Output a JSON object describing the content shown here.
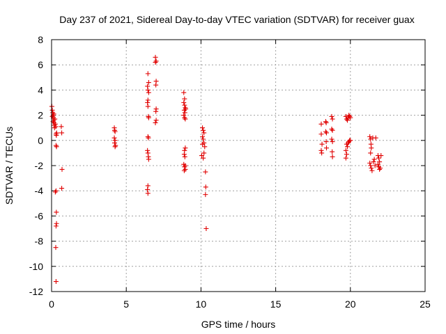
{
  "chart_data": {
    "type": "scatter",
    "title": "Day 237 of 2021, Sidereal Day-to-day VTEC variation (SDTVAR) for receiver guax",
    "xlabel": "GPS time / hours",
    "ylabel": "SDTVAR / TECUs",
    "xlim": [
      0,
      25
    ],
    "ylim": [
      -12,
      8
    ],
    "xticks": [
      0,
      5,
      10,
      15,
      20,
      25
    ],
    "yticks": [
      8,
      6,
      4,
      2,
      0,
      -2,
      -4,
      -6,
      -8,
      -10,
      -12
    ],
    "grid": true,
    "marker": "plus",
    "color": "#e00000",
    "series": [
      {
        "name": "SDTVAR",
        "points": [
          [
            0.02,
            2.7
          ],
          [
            0.05,
            2.4
          ],
          [
            0.08,
            2.2
          ],
          [
            0.1,
            2.0
          ],
          [
            0.12,
            1.8
          ],
          [
            0.14,
            1.6
          ],
          [
            0.16,
            1.4
          ],
          [
            0.18,
            1.2
          ],
          [
            0.2,
            1.0
          ],
          [
            0.05,
            1.9
          ],
          [
            0.1,
            1.5
          ],
          [
            0.15,
            2.1
          ],
          [
            0.22,
            1.7
          ],
          [
            0.25,
            1.3
          ],
          [
            0.28,
            1.1
          ],
          [
            0.3,
            0.5
          ],
          [
            0.32,
            0.4
          ],
          [
            0.34,
            0.6
          ],
          [
            0.3,
            -0.4
          ],
          [
            0.33,
            -0.5
          ],
          [
            0.25,
            -4.1
          ],
          [
            0.3,
            -4.0
          ],
          [
            0.32,
            -5.7
          ],
          [
            0.3,
            -6.8
          ],
          [
            0.33,
            -6.6
          ],
          [
            0.28,
            -8.5
          ],
          [
            0.3,
            -11.2
          ],
          [
            0.65,
            1.1
          ],
          [
            0.68,
            0.6
          ],
          [
            0.7,
            -2.3
          ],
          [
            0.68,
            -3.8
          ],
          [
            4.2,
            1.0
          ],
          [
            4.22,
            0.8
          ],
          [
            4.25,
            0.7
          ],
          [
            4.2,
            0.2
          ],
          [
            4.25,
            0.0
          ],
          [
            4.22,
            -0.2
          ],
          [
            4.28,
            -0.4
          ],
          [
            4.25,
            -0.5
          ],
          [
            6.45,
            5.3
          ],
          [
            6.5,
            4.6
          ],
          [
            6.42,
            4.3
          ],
          [
            6.45,
            4.0
          ],
          [
            6.5,
            3.8
          ],
          [
            6.45,
            3.2
          ],
          [
            6.42,
            3.0
          ],
          [
            6.45,
            2.7
          ],
          [
            6.48,
            1.9
          ],
          [
            6.5,
            1.8
          ],
          [
            6.45,
            0.3
          ],
          [
            6.48,
            0.2
          ],
          [
            6.42,
            -0.8
          ],
          [
            6.45,
            -1.0
          ],
          [
            6.48,
            -1.3
          ],
          [
            6.5,
            -1.5
          ],
          [
            6.45,
            -3.6
          ],
          [
            6.42,
            -3.9
          ],
          [
            6.45,
            -4.2
          ],
          [
            6.95,
            6.6
          ],
          [
            7.0,
            6.3
          ],
          [
            6.95,
            6.2
          ],
          [
            7.0,
            4.7
          ],
          [
            6.98,
            4.4
          ],
          [
            7.0,
            2.5
          ],
          [
            6.98,
            2.3
          ],
          [
            7.0,
            1.6
          ],
          [
            6.95,
            1.4
          ],
          [
            8.85,
            3.8
          ],
          [
            8.9,
            3.3
          ],
          [
            8.85,
            3.0
          ],
          [
            8.9,
            2.8
          ],
          [
            8.95,
            2.6
          ],
          [
            8.88,
            2.4
          ],
          [
            8.92,
            2.2
          ],
          [
            8.85,
            2.0
          ],
          [
            8.9,
            1.8
          ],
          [
            8.95,
            1.7
          ],
          [
            8.98,
            2.5
          ],
          [
            8.95,
            -0.6
          ],
          [
            8.9,
            -0.8
          ],
          [
            8.88,
            -1.1
          ],
          [
            8.92,
            -1.3
          ],
          [
            8.85,
            -1.9
          ],
          [
            8.9,
            -2.1
          ],
          [
            8.95,
            -2.3
          ],
          [
            8.88,
            -2.4
          ],
          [
            8.95,
            -2.0
          ],
          [
            10.1,
            1.0
          ],
          [
            10.15,
            0.8
          ],
          [
            10.2,
            0.6
          ],
          [
            10.1,
            0.3
          ],
          [
            10.15,
            0.1
          ],
          [
            10.2,
            -0.2
          ],
          [
            10.25,
            -0.5
          ],
          [
            10.1,
            -0.3
          ],
          [
            10.05,
            -1.2
          ],
          [
            10.15,
            -1.4
          ],
          [
            10.2,
            -1.0
          ],
          [
            10.3,
            -2.5
          ],
          [
            10.32,
            -3.7
          ],
          [
            10.3,
            -4.3
          ],
          [
            10.35,
            -7.0
          ],
          [
            18.05,
            1.3
          ],
          [
            18.05,
            0.5
          ],
          [
            18.1,
            -0.3
          ],
          [
            18.05,
            -0.8
          ],
          [
            18.08,
            -1.0
          ],
          [
            18.35,
            1.5
          ],
          [
            18.38,
            1.4
          ],
          [
            18.35,
            0.7
          ],
          [
            18.4,
            0.6
          ],
          [
            18.38,
            -0.1
          ],
          [
            18.4,
            -0.6
          ],
          [
            18.75,
            1.9
          ],
          [
            18.8,
            1.7
          ],
          [
            18.75,
            0.9
          ],
          [
            18.8,
            0.8
          ],
          [
            18.75,
            0.1
          ],
          [
            18.8,
            -0.1
          ],
          [
            18.78,
            -0.9
          ],
          [
            18.8,
            -1.3
          ],
          [
            19.7,
            1.9
          ],
          [
            19.75,
            1.7
          ],
          [
            19.8,
            1.6
          ],
          [
            19.85,
            1.8
          ],
          [
            19.9,
            2.0
          ],
          [
            19.95,
            1.9
          ],
          [
            20.0,
            1.8
          ],
          [
            19.75,
            -0.3
          ],
          [
            19.8,
            -0.5
          ],
          [
            19.85,
            -0.2
          ],
          [
            19.9,
            -0.1
          ],
          [
            19.95,
            0.0
          ],
          [
            20.0,
            0.0
          ],
          [
            19.7,
            -0.8
          ],
          [
            19.75,
            -1.1
          ],
          [
            19.7,
            -1.4
          ],
          [
            21.3,
            0.3
          ],
          [
            21.35,
            0.1
          ],
          [
            21.38,
            -0.3
          ],
          [
            21.4,
            -0.6
          ],
          [
            21.35,
            -1.0
          ],
          [
            21.3,
            -1.8
          ],
          [
            21.35,
            -2.0
          ],
          [
            21.4,
            -2.2
          ],
          [
            21.45,
            -2.4
          ],
          [
            21.5,
            0.2
          ],
          [
            21.55,
            -1.7
          ],
          [
            21.6,
            -1.5
          ],
          [
            21.65,
            -2.0
          ],
          [
            21.7,
            0.2
          ],
          [
            21.85,
            -1.2
          ],
          [
            21.9,
            -1.4
          ],
          [
            21.85,
            -1.9
          ],
          [
            21.9,
            -2.1
          ],
          [
            21.95,
            -2.3
          ],
          [
            22.0,
            -2.2
          ],
          [
            22.05,
            -1.2
          ],
          [
            21.95,
            -1.7
          ]
        ]
      }
    ]
  }
}
